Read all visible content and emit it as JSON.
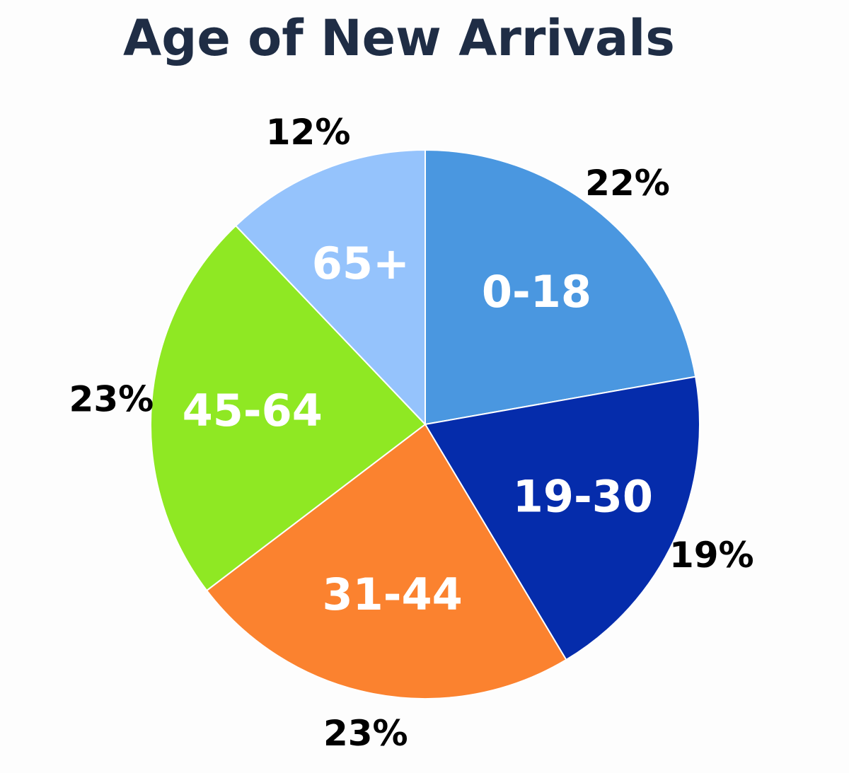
{
  "chart_data": {
    "type": "pie",
    "title": "Age of New Arrivals",
    "start_angle_deg": 0,
    "direction": "clockwise",
    "slices": [
      {
        "label": "0-18",
        "value": 22,
        "value_label": "22%",
        "color": "#4a97e0"
      },
      {
        "label": "19-30",
        "value": 19,
        "value_label": "19%",
        "color": "#052cab"
      },
      {
        "label": "31-44",
        "value": 23,
        "value_label": "23%",
        "color": "#fb822f"
      },
      {
        "label": "45-64",
        "value": 23,
        "value_label": "23%",
        "color": "#8fe823"
      },
      {
        "label": "65+",
        "value": 12,
        "value_label": "12%",
        "color": "#95c3fc"
      }
    ],
    "legend": "none",
    "grid": false
  }
}
